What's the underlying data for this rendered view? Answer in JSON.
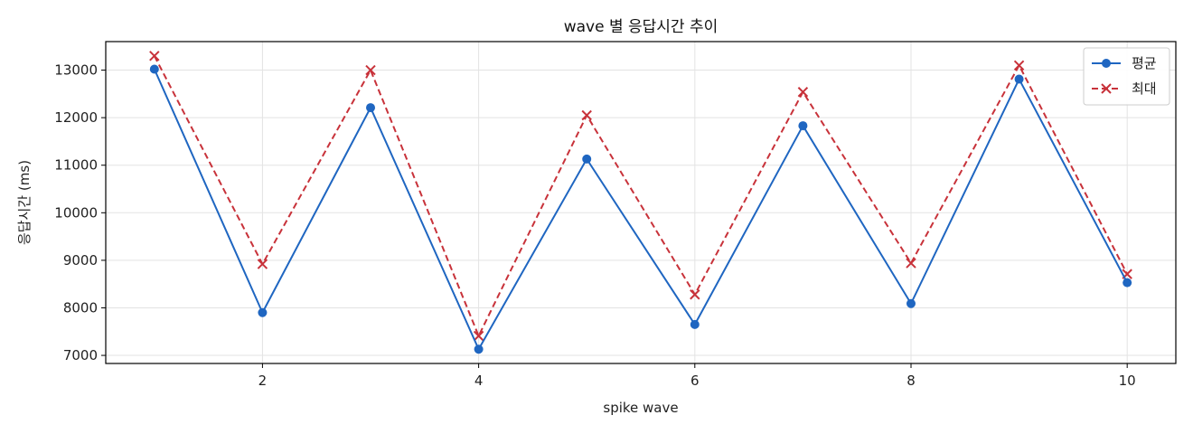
{
  "chart_data": {
    "type": "line",
    "title": "wave 별 응답시간 추이",
    "xlabel": "spike wave",
    "ylabel": "응답시간 (ms)",
    "x": [
      1,
      2,
      3,
      4,
      5,
      6,
      7,
      8,
      9,
      10
    ],
    "xlim": [
      0.55,
      10.45
    ],
    "ylim": [
      6830,
      13600
    ],
    "xticks": [
      2,
      4,
      6,
      8,
      10
    ],
    "yticks": [
      7000,
      8000,
      9000,
      10000,
      11000,
      12000,
      13000
    ],
    "grid": true,
    "legend_position": "top-right",
    "series": [
      {
        "name": "평균",
        "color": "#1f66c1",
        "line_style": "solid",
        "marker": "circle",
        "values": [
          13020,
          7900,
          12210,
          7130,
          11130,
          7650,
          11830,
          8090,
          12810,
          8530
        ]
      },
      {
        "name": "최대",
        "color": "#c8323a",
        "line_style": "dashed",
        "marker": "x",
        "values": [
          13300,
          8920,
          13000,
          7410,
          12050,
          8280,
          12540,
          8940,
          13100,
          8710
        ]
      }
    ]
  }
}
